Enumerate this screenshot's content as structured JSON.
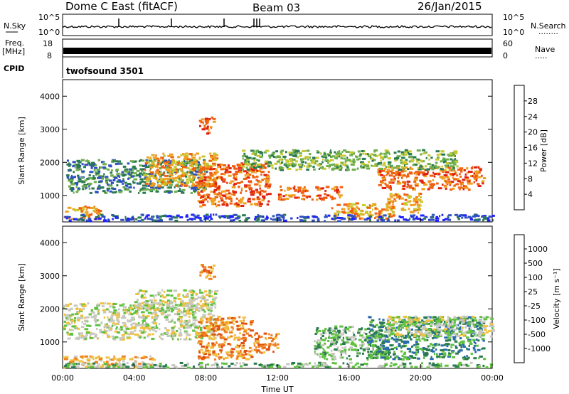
{
  "header": {
    "station": "Dome C East (fitACF)",
    "beam": "Beam 03",
    "date": "26/Jan/2015"
  },
  "top_panels": {
    "nsky_label": "N.Sky",
    "nsearch_label": "N.Search",
    "nsky_ticks": [
      "10^5",
      "10^0"
    ],
    "nsearch_ticks": [
      "10^5",
      "10^0"
    ],
    "freq_label_line1": "Freq.",
    "freq_label_line2": "[MHz]",
    "freq_ticks": [
      "18",
      "8"
    ],
    "nave_label": "Nave",
    "nave_ticks": [
      "60",
      "0"
    ],
    "cpid_label": "CPID",
    "cpid_value": "twofsound 3501",
    "dotted_marker": "........",
    "dotted_marker_short": "....."
  },
  "chart_data": [
    {
      "type": "heatmap",
      "name": "power",
      "ylabel": "Slant Range [km]",
      "xlabel": "",
      "yticks": [
        "1000",
        "2000",
        "3000",
        "4000"
      ],
      "ylim": [
        200,
        4500
      ],
      "xlim": [
        0,
        24
      ],
      "colorbar_label": "Power [dB]",
      "colorbar_ticks": [
        "4",
        "8",
        "12",
        "16",
        "20",
        "24",
        "28"
      ],
      "colorbar_colors": [
        "#2020ff",
        "#3050c0",
        "#2a7a50",
        "#6fae4c",
        "#c8c830",
        "#f0a020",
        "#f06010",
        "#e02010"
      ],
      "scatter_regions": [
        {
          "t0": 0.2,
          "t1": 8.0,
          "r0": 1100,
          "r1": 2100,
          "level": 2
        },
        {
          "t0": 0.0,
          "t1": 2.0,
          "r0": 300,
          "r1": 700,
          "level": 5
        },
        {
          "t0": 4.5,
          "t1": 8.5,
          "r0": 1300,
          "r1": 2300,
          "level": 5
        },
        {
          "t0": 7.5,
          "t1": 11.5,
          "r0": 700,
          "r1": 2000,
          "level": 6
        },
        {
          "t0": 7.6,
          "t1": 8.4,
          "r0": 2900,
          "r1": 3400,
          "level": 6
        },
        {
          "t0": 12.0,
          "t1": 15.5,
          "r0": 900,
          "r1": 1300,
          "level": 6
        },
        {
          "t0": 15.0,
          "t1": 18.5,
          "r0": 300,
          "r1": 800,
          "level": 5
        },
        {
          "t0": 17.5,
          "t1": 23.5,
          "r0": 1200,
          "r1": 1900,
          "level": 6
        },
        {
          "t0": 18.0,
          "t1": 20.0,
          "r0": 500,
          "r1": 1100,
          "level": 5
        },
        {
          "t0": 10.0,
          "t1": 22.0,
          "r0": 1800,
          "r1": 2400,
          "level": 3
        },
        {
          "t0": 0.0,
          "t1": 24.0,
          "r0": 250,
          "r1": 450,
          "level": 1
        }
      ]
    },
    {
      "type": "heatmap",
      "name": "velocity",
      "ylabel": "Slant Range [km]",
      "xlabel": "Time UT",
      "yticks": [
        "1000",
        "2000",
        "3000",
        "4000"
      ],
      "ylim": [
        200,
        4500
      ],
      "xlim": [
        0,
        24
      ],
      "xticks": [
        "00:00",
        "04:00",
        "08:00",
        "12:00",
        "16:00",
        "20:00",
        "00:00"
      ],
      "colorbar_label": "Velocity [m s⁻¹]",
      "colorbar_ticks": [
        "1000",
        "500",
        "100",
        "25",
        "-25",
        "-100",
        "-500",
        "-1000"
      ],
      "colorbar_colors": [
        "#2030a0",
        "#2a6ab0",
        "#2a7a50",
        "#60c040",
        "#c8c8c0",
        "#f0c040",
        "#f08020",
        "#e05010",
        "#e01010"
      ],
      "scatter_regions": [
        {
          "t0": 0.0,
          "t1": 8.5,
          "r0": 1100,
          "r1": 2200,
          "level": 4
        },
        {
          "t0": 4.0,
          "t1": 8.5,
          "r0": 2000,
          "r1": 2600,
          "level": 4
        },
        {
          "t0": 7.5,
          "t1": 10.5,
          "r0": 500,
          "r1": 1800,
          "level": 6
        },
        {
          "t0": 7.6,
          "t1": 8.4,
          "r0": 2900,
          "r1": 3400,
          "level": 6
        },
        {
          "t0": 10.5,
          "t1": 12.0,
          "r0": 700,
          "r1": 1300,
          "level": 6
        },
        {
          "t0": 14.0,
          "t1": 18.0,
          "r0": 500,
          "r1": 1500,
          "level": 3
        },
        {
          "t0": 17.0,
          "t1": 23.5,
          "r0": 500,
          "r1": 1800,
          "level": 2
        },
        {
          "t0": 18.0,
          "t1": 24.0,
          "r0": 1200,
          "r1": 1800,
          "level": 4
        },
        {
          "t0": 0.0,
          "t1": 5.0,
          "r0": 250,
          "r1": 600,
          "level": 5
        },
        {
          "t0": 0.0,
          "t1": 24.0,
          "r0": 250,
          "r1": 400,
          "level": 3
        }
      ]
    }
  ]
}
